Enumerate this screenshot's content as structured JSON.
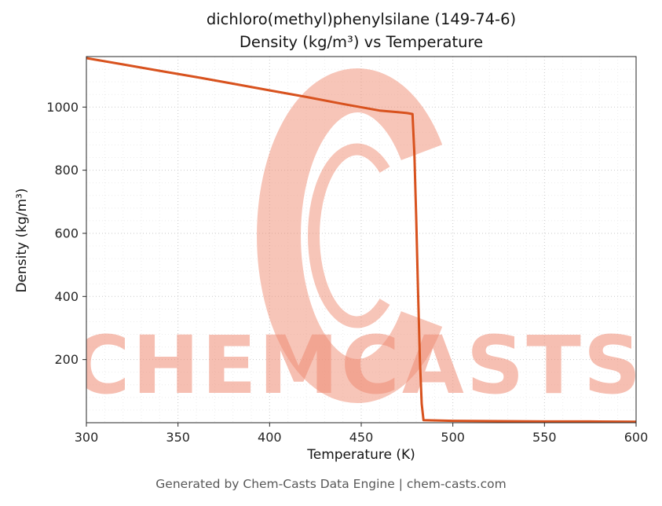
{
  "watermark": {
    "text": "CHEMCASTS",
    "color": "#ef8b72",
    "logo": "chemcasts-c-swirl"
  },
  "footer": {
    "text": "Generated by Chem-Casts Data Engine | chem-casts.com"
  },
  "chart_data": {
    "type": "line",
    "title": "dichloro(methyl)phenylsilane (149-74-6)\nDensity (kg/m³) vs Temperature",
    "title_lines": [
      "dichloro(methyl)phenylsilane (149-74-6)",
      "Density (kg/m³) vs Temperature"
    ],
    "xlabel": "Temperature (K)",
    "ylabel": "Density (kg/m³)",
    "xlim": [
      300,
      600
    ],
    "ylim": [
      0,
      1160
    ],
    "xticks": [
      300,
      350,
      400,
      450,
      500,
      550,
      600
    ],
    "yticks": [
      200,
      400,
      600,
      800,
      1000
    ],
    "x_minor_step": 10,
    "y_minor_step": 40,
    "grid": true,
    "legend": "none",
    "line_color": "#d8521e",
    "line_width": 3,
    "series": [
      {
        "name": "Density",
        "points": [
          [
            300,
            1155
          ],
          [
            320,
            1135
          ],
          [
            340,
            1115
          ],
          [
            360,
            1095
          ],
          [
            380,
            1074
          ],
          [
            400,
            1053
          ],
          [
            420,
            1032
          ],
          [
            440,
            1010
          ],
          [
            460,
            989
          ],
          [
            470,
            984
          ],
          [
            475,
            981
          ],
          [
            478,
            978
          ],
          [
            479,
            850
          ],
          [
            480,
            650
          ],
          [
            481,
            420
          ],
          [
            482,
            200
          ],
          [
            483,
            60
          ],
          [
            484,
            8
          ],
          [
            500,
            6
          ],
          [
            525,
            5
          ],
          [
            550,
            4
          ],
          [
            575,
            4
          ],
          [
            600,
            3
          ]
        ]
      }
    ]
  }
}
